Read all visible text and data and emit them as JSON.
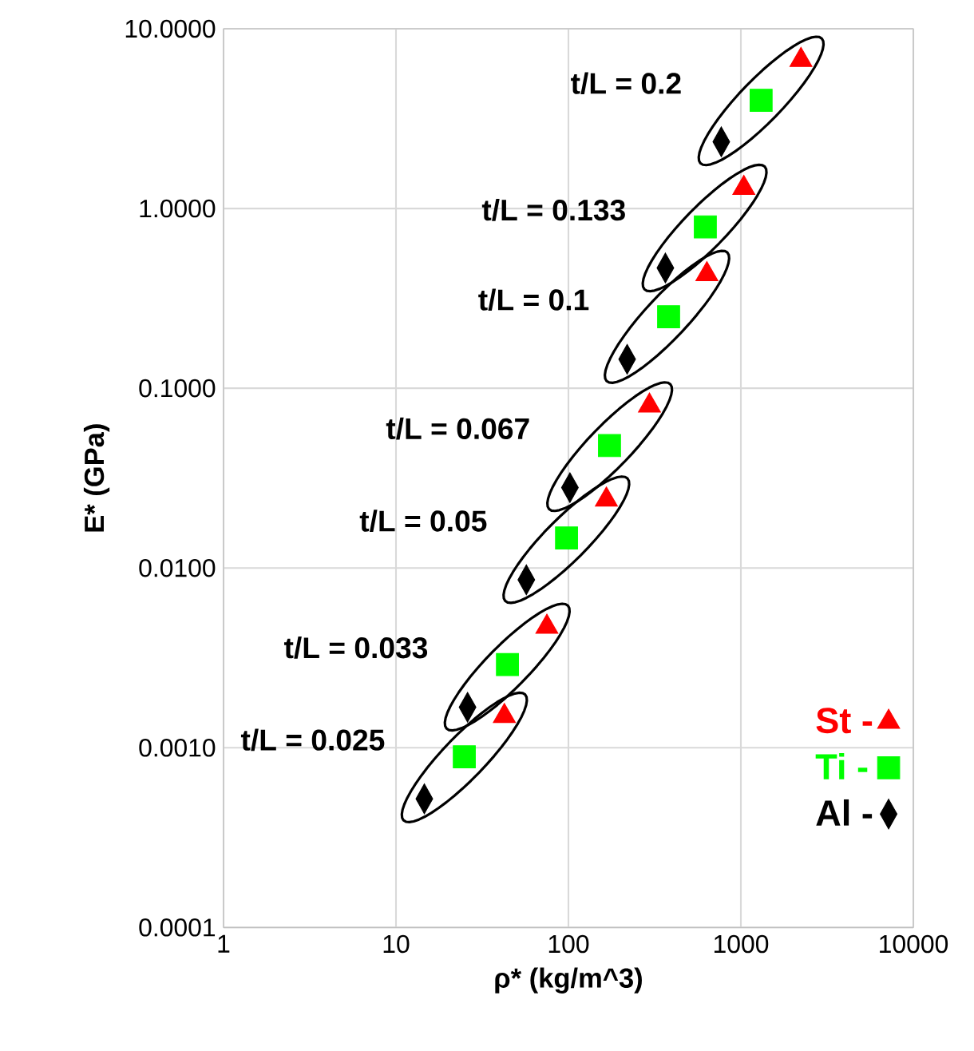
{
  "chart_data": {
    "type": "scatter",
    "xlabel": "ρ* (kg/m^3)",
    "ylabel": "E* (GPa)",
    "log": "xy",
    "grid": true,
    "legend": "bottom right",
    "xlim": [
      1,
      10000
    ],
    "xticks": [
      1,
      10,
      100,
      1000,
      10000
    ],
    "ylim": [
      0.0001,
      10
    ],
    "yticks": [
      {
        "value": 0.0001,
        "label": "0.0001"
      },
      {
        "value": 0.001,
        "label": "0.0010"
      },
      {
        "value": 0.01,
        "label": "0.0100"
      },
      {
        "value": 0.1,
        "label": "0.1000"
      },
      {
        "value": 1,
        "label": "1.0000"
      },
      {
        "value": 10,
        "label": "10.0000"
      }
    ],
    "series": [
      {
        "name": "St -",
        "color": "#ff0000",
        "marker": "triangle",
        "x": [
          2230,
          1040,
          635,
          295,
          166,
          75,
          42.5
        ],
        "values": [
          6.7,
          1.3,
          0.43,
          0.08,
          0.024,
          0.0047,
          0.0015
        ]
      },
      {
        "name": "Ti -",
        "color": "#00ff00",
        "marker": "square",
        "x": [
          1310,
          622,
          381,
          173,
          97.5,
          44.3,
          24.9
        ],
        "values": [
          4.0,
          0.79,
          0.25,
          0.048,
          0.0147,
          0.0029,
          0.00089
        ]
      },
      {
        "name": "Al -",
        "color": "#000000",
        "marker": "diamond",
        "x": [
          770,
          365,
          219,
          102,
          57,
          26,
          14.6
        ],
        "values": [
          2.35,
          0.467,
          0.145,
          0.028,
          0.0086,
          0.00168,
          0.00052
        ]
      }
    ],
    "annotations": [
      "t/L = 0.2",
      "t/L = 0.133",
      "t/L = 0.1",
      "t/L = 0.067",
      "t/L = 0.05",
      "t/L = 0.033",
      "t/L = 0.025"
    ]
  }
}
